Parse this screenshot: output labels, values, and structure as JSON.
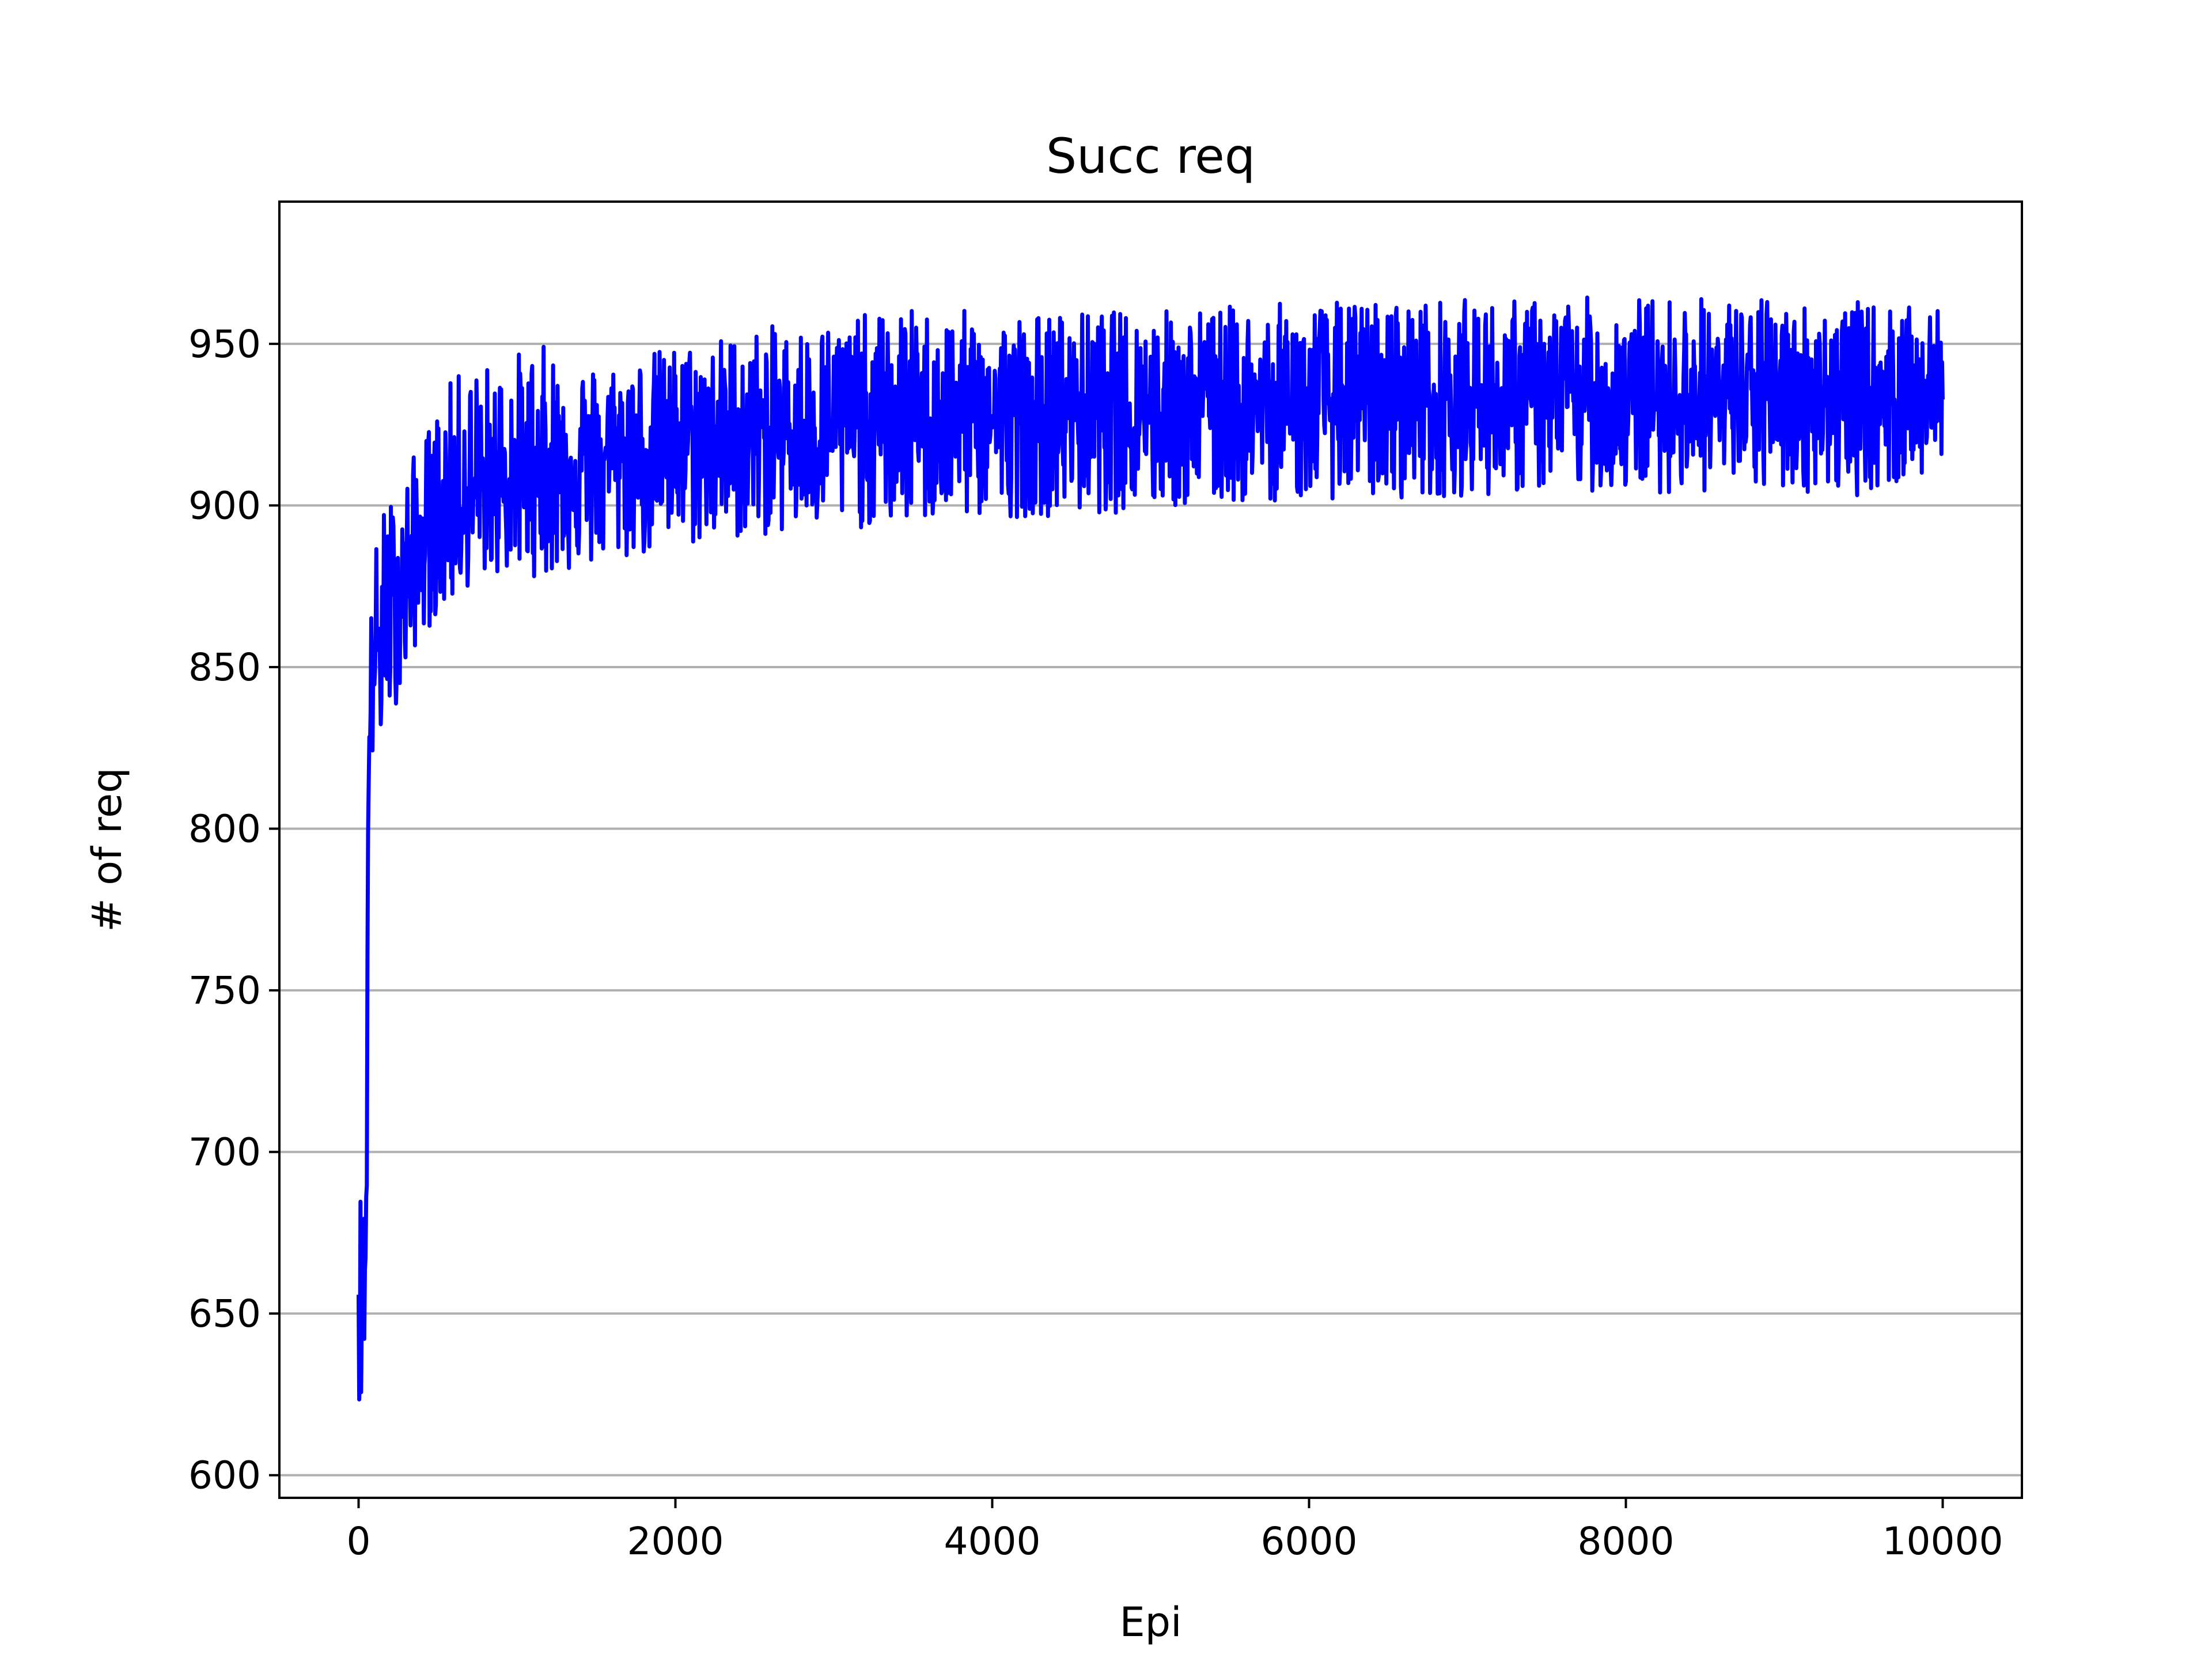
{
  "chart_data": {
    "type": "line",
    "title": "Succ req",
    "xlabel": "Epi",
    "ylabel": "# of req",
    "xlim": [
      -500,
      10500
    ],
    "ylim": [
      593,
      994
    ],
    "x_ticks": [
      "0",
      "2000",
      "4000",
      "6000",
      "8000",
      "10000"
    ],
    "y_ticks": [
      "600",
      "650",
      "700",
      "750",
      "800",
      "850",
      "900",
      "950"
    ],
    "grid": "horizontal",
    "legend": "none",
    "series": [
      {
        "color": "#0000ff",
        "x": [
          0,
          10,
          20,
          30,
          40,
          50,
          60,
          70,
          80,
          100,
          120,
          150,
          200,
          250,
          300,
          350,
          400,
          500,
          600,
          700,
          800,
          1000,
          1200,
          1500,
          2000,
          2500,
          3000,
          3500,
          4000,
          4500,
          5000,
          5500,
          6000,
          6500,
          7000,
          7500,
          8000,
          8500,
          9000,
          9500,
          10000
        ],
        "upper": [
          688,
          695,
          680,
          690,
          672,
          700,
          818,
          842,
          870,
          886,
          892,
          899,
          903,
          905,
          910,
          916,
          920,
          932,
          940,
          944,
          944,
          948,
          950,
          944,
          950,
          955,
          958,
          961,
          960,
          960,
          961,
          962,
          963,
          964,
          964,
          964,
          965,
          965,
          964,
          963,
          960
        ],
        "lower": [
          632,
          610,
          620,
          630,
          640,
          660,
          780,
          806,
          815,
          820,
          823,
          825,
          835,
          840,
          845,
          855,
          860,
          865,
          870,
          875,
          878,
          878,
          878,
          880,
          886,
          890,
          892,
          894,
          896,
          897,
          898,
          900,
          902,
          902,
          903,
          904,
          904,
          904,
          904,
          903,
          910
        ],
        "mean": [
          660,
          650,
          655,
          665,
          660,
          690,
          800,
          830,
          845,
          852,
          856,
          860,
          868,
          872,
          877,
          882,
          887,
          893,
          898,
          902,
          905,
          909,
          912,
          915,
          919,
          922,
          924,
          926,
          927,
          928,
          929,
          930,
          931,
          932,
          932,
          933,
          933,
          933,
          933,
          932,
          935
        ]
      }
    ]
  }
}
